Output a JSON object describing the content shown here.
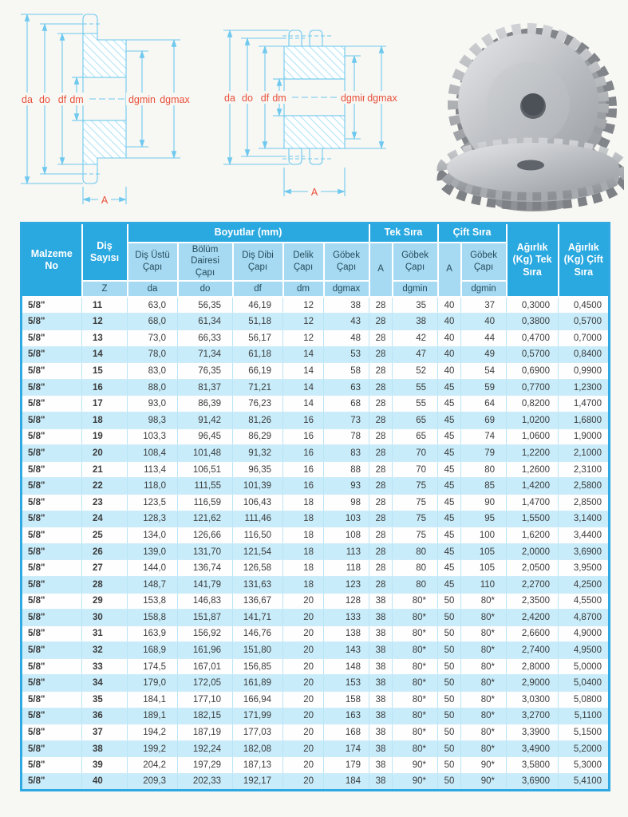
{
  "page": {
    "background": "#f7f7f4"
  },
  "colors": {
    "header_dark": "#2aa8e0",
    "header_light": "#a6daf2",
    "row_stripe": "#c8ecfa",
    "table_border": "#2fa9e2",
    "diagram_line": "#6fc9ee",
    "diagram_label_red": "#e9513b"
  },
  "diagrams": {
    "labels": {
      "da": "da",
      "do": "do",
      "df": "df",
      "dm": "dm",
      "dgmin": "dgmin",
      "dgmax": "dgmax",
      "a": "A"
    }
  },
  "table": {
    "header": {
      "malzeme_no": "Malzeme No",
      "dis_sayisi": "Diş Sayısı",
      "boyutlar": "Boyutlar (mm)",
      "tek_sira": "Tek Sıra",
      "cift_sira": "Çift Sıra",
      "agirlik_tek": "Ağırlık (Kg) Tek Sıra",
      "agirlik_cift": "Ağırlık (Kg) Çift Sıra",
      "dis_ustu_capi": "Diş Üstü Çapı",
      "bolum_dairesi_capi": "Bölüm Dairesi Çapı",
      "dis_dibi_capi": "Diş Dibi Çapı",
      "delik_capi": "Delik Çapı",
      "gobek_capi_max": "Göbek Çapı",
      "a_tek": "A",
      "gobek_capi_tek": "Göbek Çapı",
      "a_cift": "A",
      "gobek_capi_cift": "Göbek Çapı",
      "symbols": {
        "z": "Z",
        "da": "da",
        "do": "do",
        "df": "df",
        "dm": "dm",
        "dgmax": "dgmax",
        "dgmin_tek": "dgmin",
        "dgmin_cift": "dgmin"
      }
    },
    "rows": [
      [
        "5/8\"",
        "11",
        "63,0",
        "56,35",
        "46,19",
        "12",
        "38",
        "28",
        "35",
        "40",
        "37",
        "0,3000",
        "0,4500"
      ],
      [
        "5/8\"",
        "12",
        "68,0",
        "61,34",
        "51,18",
        "12",
        "43",
        "28",
        "38",
        "40",
        "40",
        "0,3800",
        "0,5700"
      ],
      [
        "5/8\"",
        "13",
        "73,0",
        "66,33",
        "56,17",
        "12",
        "48",
        "28",
        "42",
        "40",
        "44",
        "0,4700",
        "0,7000"
      ],
      [
        "5/8\"",
        "14",
        "78,0",
        "71,34",
        "61,18",
        "14",
        "53",
        "28",
        "47",
        "40",
        "49",
        "0,5700",
        "0,8400"
      ],
      [
        "5/8\"",
        "15",
        "83,0",
        "76,35",
        "66,19",
        "14",
        "58",
        "28",
        "52",
        "40",
        "54",
        "0,6900",
        "0,9900"
      ],
      [
        "5/8\"",
        "16",
        "88,0",
        "81,37",
        "71,21",
        "14",
        "63",
        "28",
        "55",
        "45",
        "59",
        "0,7700",
        "1,2300"
      ],
      [
        "5/8\"",
        "17",
        "93,0",
        "86,39",
        "76,23",
        "14",
        "68",
        "28",
        "55",
        "45",
        "64",
        "0,8200",
        "1,4700"
      ],
      [
        "5/8\"",
        "18",
        "98,3",
        "91,42",
        "81,26",
        "16",
        "73",
        "28",
        "65",
        "45",
        "69",
        "1,0200",
        "1,6800"
      ],
      [
        "5/8\"",
        "19",
        "103,3",
        "96,45",
        "86,29",
        "16",
        "78",
        "28",
        "65",
        "45",
        "74",
        "1,0600",
        "1,9000"
      ],
      [
        "5/8\"",
        "20",
        "108,4",
        "101,48",
        "91,32",
        "16",
        "83",
        "28",
        "70",
        "45",
        "79",
        "1,2200",
        "2,1000"
      ],
      [
        "5/8\"",
        "21",
        "113,4",
        "106,51",
        "96,35",
        "16",
        "88",
        "28",
        "70",
        "45",
        "80",
        "1,2600",
        "2,3100"
      ],
      [
        "5/8\"",
        "22",
        "118,0",
        "111,55",
        "101,39",
        "16",
        "93",
        "28",
        "75",
        "45",
        "85",
        "1,4200",
        "2,5800"
      ],
      [
        "5/8\"",
        "23",
        "123,5",
        "116,59",
        "106,43",
        "18",
        "98",
        "28",
        "75",
        "45",
        "90",
        "1,4700",
        "2,8500"
      ],
      [
        "5/8\"",
        "24",
        "128,3",
        "121,62",
        "111,46",
        "18",
        "103",
        "28",
        "75",
        "45",
        "95",
        "1,5500",
        "3,1400"
      ],
      [
        "5/8\"",
        "25",
        "134,0",
        "126,66",
        "116,50",
        "18",
        "108",
        "28",
        "75",
        "45",
        "100",
        "1,6200",
        "3,4400"
      ],
      [
        "5/8\"",
        "26",
        "139,0",
        "131,70",
        "121,54",
        "18",
        "113",
        "28",
        "80",
        "45",
        "105",
        "2,0000",
        "3,6900"
      ],
      [
        "5/8\"",
        "27",
        "144,0",
        "136,74",
        "126,58",
        "18",
        "118",
        "28",
        "80",
        "45",
        "105",
        "2,0500",
        "3,9500"
      ],
      [
        "5/8\"",
        "28",
        "148,7",
        "141,79",
        "131,63",
        "18",
        "123",
        "28",
        "80",
        "45",
        "110",
        "2,2700",
        "4,2500"
      ],
      [
        "5/8\"",
        "29",
        "153,8",
        "146,83",
        "136,67",
        "20",
        "128",
        "38",
        "80*",
        "50",
        "80*",
        "2,3500",
        "4,5500"
      ],
      [
        "5/8\"",
        "30",
        "158,8",
        "151,87",
        "141,71",
        "20",
        "133",
        "38",
        "80*",
        "50",
        "80*",
        "2,4200",
        "4,8700"
      ],
      [
        "5/8\"",
        "31",
        "163,9",
        "156,92",
        "146,76",
        "20",
        "138",
        "38",
        "80*",
        "50",
        "80*",
        "2,6600",
        "4,9000"
      ],
      [
        "5/8\"",
        "32",
        "168,9",
        "161,96",
        "151,80",
        "20",
        "143",
        "38",
        "80*",
        "50",
        "80*",
        "2,7400",
        "4,9500"
      ],
      [
        "5/8\"",
        "33",
        "174,5",
        "167,01",
        "156,85",
        "20",
        "148",
        "38",
        "80*",
        "50",
        "80*",
        "2,8000",
        "5,0000"
      ],
      [
        "5/8\"",
        "34",
        "179,0",
        "172,05",
        "161,89",
        "20",
        "153",
        "38",
        "80*",
        "50",
        "80*",
        "2,9000",
        "5,0400"
      ],
      [
        "5/8\"",
        "35",
        "184,1",
        "177,10",
        "166,94",
        "20",
        "158",
        "38",
        "80*",
        "50",
        "80*",
        "3,0300",
        "5,0800"
      ],
      [
        "5/8\"",
        "36",
        "189,1",
        "182,15",
        "171,99",
        "20",
        "163",
        "38",
        "80*",
        "50",
        "80*",
        "3,2700",
        "5,1100"
      ],
      [
        "5/8\"",
        "37",
        "194,2",
        "187,19",
        "177,03",
        "20",
        "168",
        "38",
        "80*",
        "50",
        "80*",
        "3,3900",
        "5,1500"
      ],
      [
        "5/8\"",
        "38",
        "199,2",
        "192,24",
        "182,08",
        "20",
        "174",
        "38",
        "80*",
        "50",
        "80*",
        "3,4900",
        "5,2000"
      ],
      [
        "5/8\"",
        "39",
        "204,2",
        "197,29",
        "187,13",
        "20",
        "179",
        "38",
        "90*",
        "50",
        "90*",
        "3,5800",
        "5,3000"
      ],
      [
        "5/8\"",
        "40",
        "209,3",
        "202,33",
        "192,17",
        "20",
        "184",
        "38",
        "90*",
        "50",
        "90*",
        "3,6900",
        "5,4100"
      ]
    ]
  }
}
